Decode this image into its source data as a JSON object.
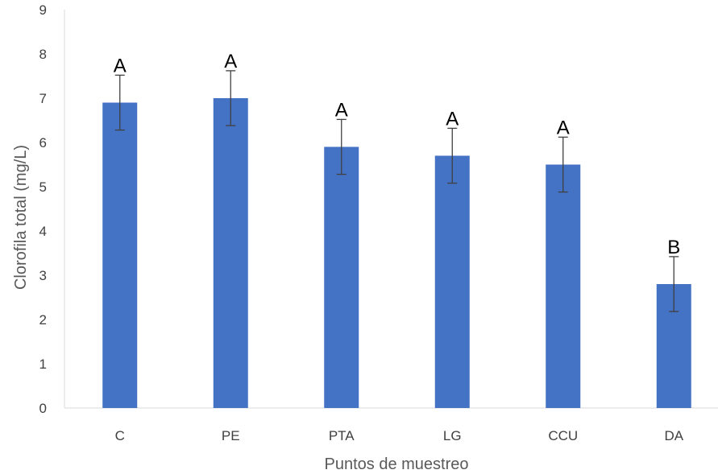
{
  "chart_data": {
    "type": "bar",
    "title": "",
    "xlabel": "Puntos de muestreo",
    "ylabel": "Clorofila total (mg/L)",
    "ylim": [
      0,
      9
    ],
    "yticks": [
      0,
      1,
      2,
      3,
      4,
      5,
      6,
      7,
      8,
      9
    ],
    "grid": false,
    "legend": "none",
    "categories": [
      "C",
      "PE",
      "PTA",
      "LG",
      "CCU",
      "DA"
    ],
    "series": [
      {
        "values": [
          6.9,
          7.0,
          5.9,
          5.7,
          5.5,
          2.8
        ],
        "errors": [
          0.62,
          0.62,
          0.62,
          0.62,
          0.62,
          0.62
        ],
        "significance_labels": [
          "A",
          "A",
          "A",
          "A",
          "A",
          "B"
        ],
        "color": "#4472C4"
      }
    ],
    "axis_color": "#D9D9D9",
    "error_bar_color": "#404040"
  }
}
